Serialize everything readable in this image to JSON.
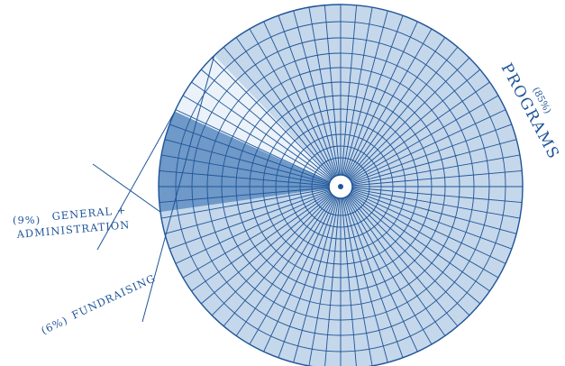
{
  "chart_data": {
    "type": "pie",
    "slices": [
      {
        "key": "programs",
        "label": "PROGRAMS",
        "pct_label": "(85%)",
        "value": 85,
        "color": "#c5d7ea"
      },
      {
        "key": "fundraising",
        "label": "FUNDRAISING",
        "pct_label": "(6%)",
        "value": 6,
        "color": "#ebf2f9"
      },
      {
        "key": "general",
        "label": "GENERAL +",
        "label2": "ADMINISTRATION",
        "pct_label": "(9%)",
        "value": 9,
        "color": "#6e99c8"
      }
    ],
    "grid_color": "#1f5598",
    "text_color": "#1f5598"
  }
}
